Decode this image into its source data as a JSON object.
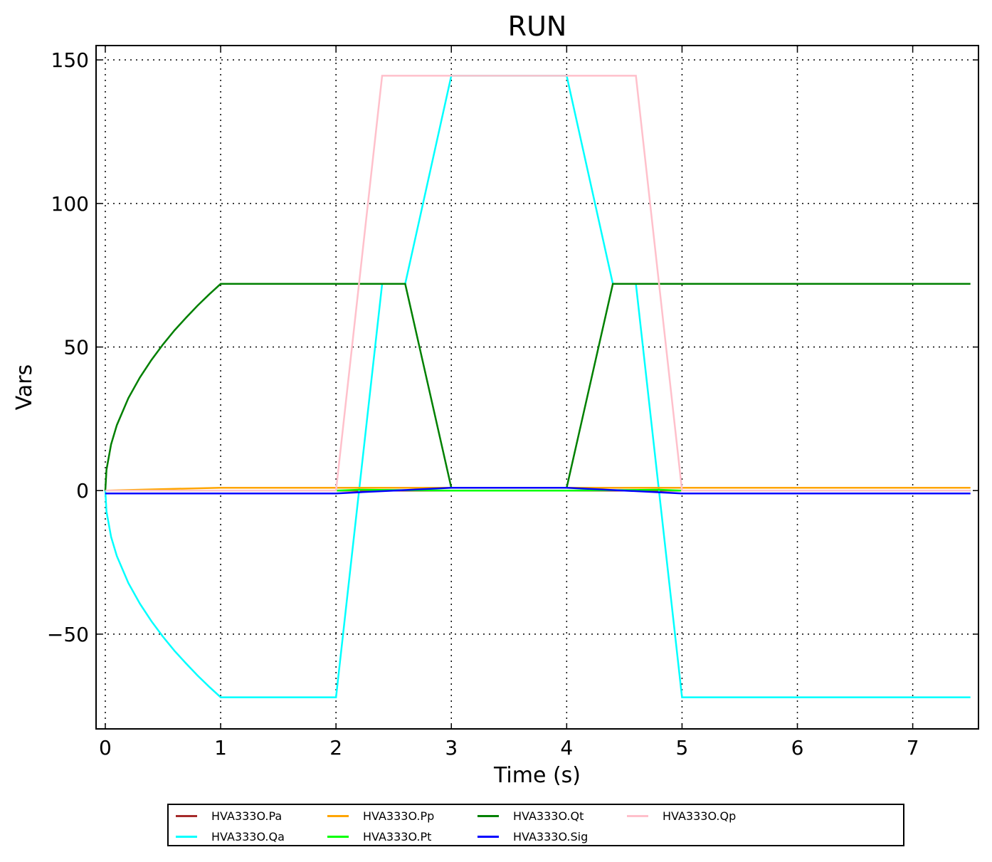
{
  "chart_data": {
    "type": "line",
    "title": "RUN",
    "xlabel": "Time (s)",
    "ylabel": "Vars",
    "xlim": [
      -0.08,
      7.57
    ],
    "ylim": [
      -83,
      155
    ],
    "xticks": [
      0,
      1,
      2,
      3,
      4,
      5,
      6,
      7
    ],
    "yticks": [
      -50,
      0,
      50,
      100,
      150
    ],
    "ytick_labels": [
      "−50",
      "0",
      "50",
      "100",
      "150"
    ],
    "grid": true,
    "legend_placement": "bottom-outside",
    "series": [
      {
        "name": "HVA333O.Pa",
        "color": "#a52a2a",
        "x": [
          0,
          7.5
        ],
        "y": [
          0,
          0
        ]
      },
      {
        "name": "HVA333O.Qa",
        "color": "#00ffff",
        "x": [
          0,
          0.01,
          0.05,
          0.1,
          0.2,
          0.3,
          0.4,
          0.5,
          0.6,
          0.7,
          0.8,
          0.9,
          1,
          2,
          2.4,
          2.6,
          3,
          4,
          4.4,
          4.6,
          5,
          7.5
        ],
        "y": [
          0,
          -7.2,
          -16.1,
          -22.8,
          -32.2,
          -39.4,
          -45.5,
          -50.9,
          -55.8,
          -60.2,
          -64.4,
          -68.3,
          -72,
          -72,
          72,
          72,
          144.5,
          144.5,
          72,
          72,
          -72,
          -72
        ]
      },
      {
        "name": "HVA333O.Pp",
        "color": "#ffa500",
        "x": [
          0,
          1,
          7.5
        ],
        "y": [
          0,
          1,
          1
        ]
      },
      {
        "name": "HVA333O.Pt",
        "color": "#00ff00",
        "x": [
          0,
          2,
          2.2,
          3,
          4,
          4.8,
          5,
          7.5
        ],
        "y": [
          0,
          0,
          0.3,
          0,
          0,
          0.3,
          0,
          0
        ]
      },
      {
        "name": "HVA333O.Qt",
        "color": "#008000",
        "x": [
          0,
          0.01,
          0.05,
          0.1,
          0.2,
          0.3,
          0.4,
          0.5,
          0.6,
          0.7,
          0.8,
          0.9,
          1,
          2.6,
          3,
          4,
          4.4,
          7.5
        ],
        "y": [
          0,
          7.2,
          16.1,
          22.8,
          32.2,
          39.4,
          45.5,
          50.9,
          55.8,
          60.2,
          64.4,
          68.3,
          72,
          72,
          1,
          1,
          72,
          72
        ]
      },
      {
        "name": "HVA333O.Sig",
        "color": "#0000ff",
        "x": [
          0,
          2,
          2.5,
          3,
          4,
          4.5,
          5,
          7.5
        ],
        "y": [
          -1,
          -1,
          0,
          1,
          1,
          0,
          -1,
          -1
        ]
      },
      {
        "name": "HVA333O.Qp",
        "color": "#ffc0cb",
        "x": [
          0,
          2,
          2.4,
          4.6,
          5,
          7.5
        ],
        "y": [
          0,
          0,
          144.5,
          144.5,
          0,
          0
        ]
      }
    ]
  }
}
